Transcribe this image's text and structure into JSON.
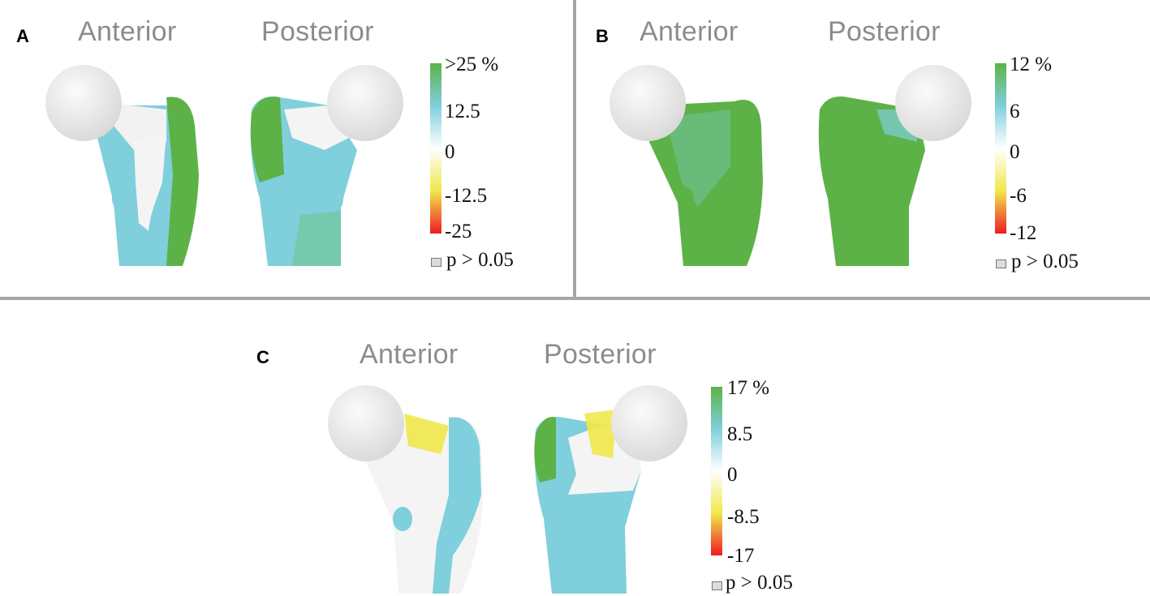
{
  "panels": [
    {
      "label": "A",
      "views": [
        "Anterior",
        "Posterior"
      ],
      "scale": {
        "top": ">25 %",
        "upper": "12.5",
        "mid": "0",
        "lower": "-12.5",
        "bottom": "-25"
      },
      "legend": "p > 0.05"
    },
    {
      "label": "B",
      "views": [
        "Anterior",
        "Posterior"
      ],
      "scale": {
        "top": "12 %",
        "upper": "6",
        "mid": "0",
        "lower": "-6",
        "bottom": "-12"
      },
      "legend": "p > 0.05"
    },
    {
      "label": "C",
      "views": [
        "Anterior",
        "Posterior"
      ],
      "scale": {
        "top": "17 %",
        "upper": "8.5",
        "mid": "0",
        "lower": "-8.5",
        "bottom": "-17"
      },
      "legend": "p > 0.05"
    }
  ],
  "colors": {
    "green": "#5cb247",
    "cyan": "#7fcfdc",
    "white": "#f4f4f4",
    "yellow": "#f0e84a",
    "red": "#ee1c25",
    "head": "#ececec",
    "divider": "#a6a6a6"
  }
}
